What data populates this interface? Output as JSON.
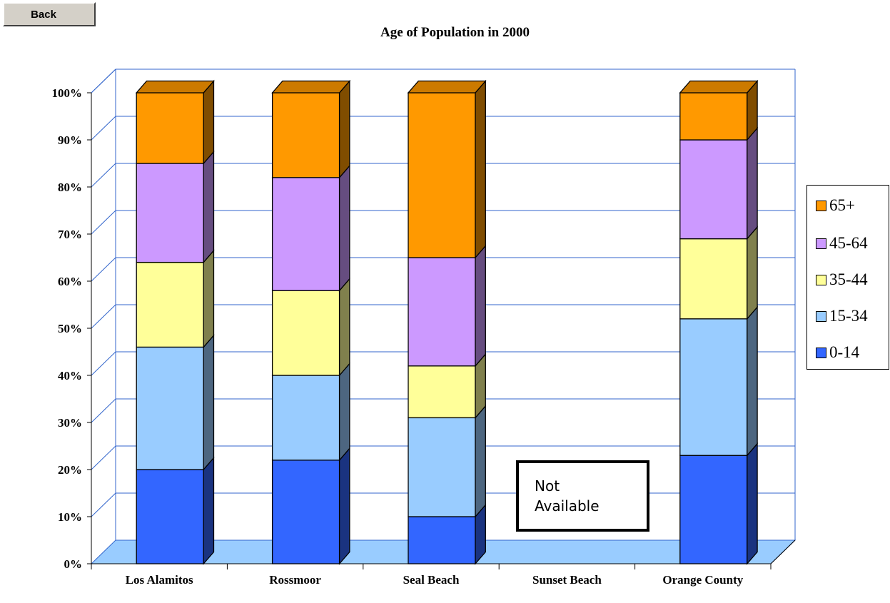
{
  "toolbar": {
    "back_label": "Back"
  },
  "not_available_label": [
    "Not",
    "Available"
  ],
  "colors": {
    "0-14": "#3366ff",
    "15-34": "#99ccff",
    "35-44": "#ffff99",
    "45-64": "#cc99ff",
    "65+": "#ff9900",
    "gridline": "#3366cc",
    "floor": "#99ccff"
  },
  "chart_data": {
    "type": "bar",
    "stacked": true,
    "percent": true,
    "three_d": true,
    "title": "Age of Population in 2000",
    "xlabel": "",
    "ylabel": "",
    "categories": [
      "Los Alamitos",
      "Rossmoor",
      "Seal Beach",
      "Sunset Beach",
      "Orange County"
    ],
    "yticks": [
      "0%",
      "10%",
      "20%",
      "30%",
      "40%",
      "50%",
      "60%",
      "70%",
      "80%",
      "90%",
      "100%"
    ],
    "ylim": [
      0,
      100
    ],
    "grid": true,
    "legend_position": "right",
    "legend_order": [
      "65+",
      "45-64",
      "35-44",
      "15-34",
      "0-14"
    ],
    "series": [
      {
        "name": "0-14",
        "values": [
          20,
          22,
          10,
          null,
          23
        ]
      },
      {
        "name": "15-34",
        "values": [
          26,
          18,
          21,
          null,
          29
        ]
      },
      {
        "name": "35-44",
        "values": [
          18,
          18,
          11,
          null,
          17
        ]
      },
      {
        "name": "45-64",
        "values": [
          21,
          24,
          23,
          null,
          21
        ]
      },
      {
        "name": "65+",
        "values": [
          15,
          18,
          35,
          null,
          10
        ]
      }
    ]
  }
}
